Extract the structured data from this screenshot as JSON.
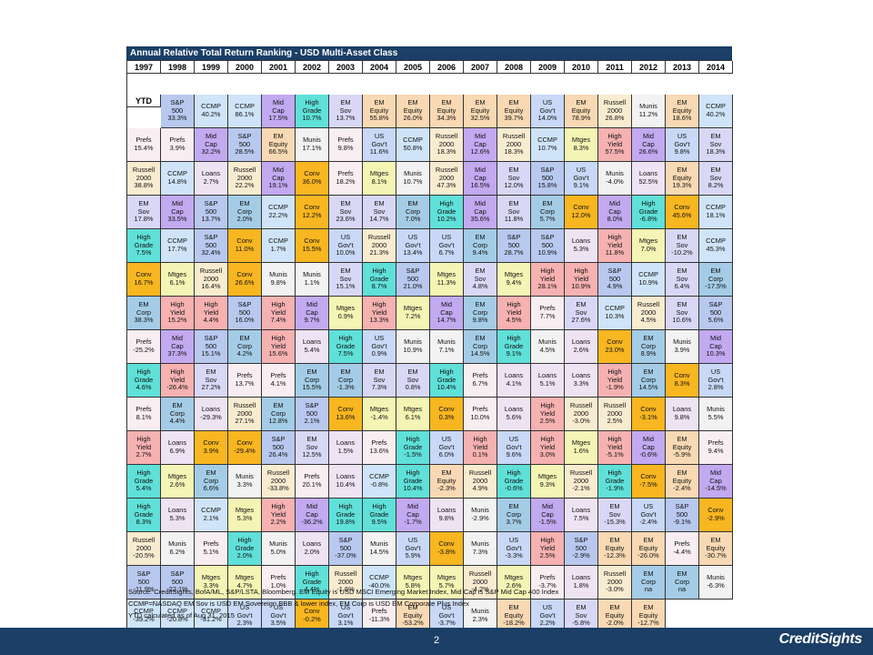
{
  "title": "Annual Relative Total Return Ranking - USD Multi-Asset Class",
  "footnotes": [
    "Source: CreditSights, BofA/ML, S&P/LSTA, Bloomberg. EM Equity is USD MSCI Emerging Market Index, Mid Cap is S&P Mid Cap 400 Index",
    "CCMP=NASDAQ  EM Sov is USD EM Sovereign BBB & lower index, EM Corp is USD EM Corporate Plus Index",
    "YTD calculated as of Aug 31, 2015"
  ],
  "page_number": "2",
  "logo": "CreditSights",
  "assets": {
    "sp": {
      "label": "S&P\n500",
      "color": "#b8c8ee"
    },
    "ccmp": {
      "label": "CCMP",
      "color": "#cfe4f8"
    },
    "mid": {
      "label": "Mid\nCap",
      "color": "#c2a9f0"
    },
    "hy": {
      "label": "High\nYield",
      "color": "#f6b1b1"
    },
    "hg": {
      "label": "High\nGrade",
      "color": "#5fe0d8"
    },
    "sov": {
      "label": "EM\nSov",
      "color": "#d8d8f6"
    },
    "eq": {
      "label": "EM\nEquity",
      "color": "#f8d9b4"
    },
    "russ": {
      "label": "Russell\n2000",
      "color": "#f8ecd0"
    },
    "ust": {
      "label": "US\nGov't",
      "color": "#c8d8f6"
    },
    "corp": {
      "label": "EM\nCorp",
      "color": "#a4cce6"
    },
    "mun": {
      "label": "Munis",
      "color": "#f2f2f2"
    },
    "conv": {
      "label": "Conv",
      "color": "#f8b620"
    },
    "mtg": {
      "label": "Mtges",
      "color": "#f4f4b4"
    },
    "loan": {
      "label": "Loans",
      "color": "#ede3f3"
    },
    "pref": {
      "label": "Prefs",
      "color": "#f8eef2"
    }
  },
  "chart_data": {
    "type": "table",
    "title": "Annual Relative Total Return Ranking - USD Multi-Asset Class",
    "columns": [
      "1997",
      "1998",
      "1999",
      "2000",
      "2001",
      "2002",
      "2003",
      "2004",
      "2005",
      "2006",
      "2007",
      "2008",
      "2009",
      "2010",
      "2011",
      "2012",
      "2013",
      "2014",
      "YTD"
    ],
    "rows": [
      [
        [
          "sp",
          "33.3%"
        ],
        [
          "ccmp",
          "40.2%"
        ],
        [
          "ccmp",
          "86.1%"
        ],
        [
          "mid",
          "17.5%"
        ],
        [
          "hg",
          "10.7%"
        ],
        [
          "sov",
          "13.7%"
        ],
        [
          "eq",
          "55.8%"
        ],
        [
          "eq",
          "26.0%"
        ],
        [
          "eq",
          "34.3%"
        ],
        [
          "eq",
          "32.5%"
        ],
        [
          "eq",
          "39.7%"
        ],
        [
          "ust",
          "14.0%"
        ],
        [
          "eq",
          "78.9%"
        ],
        [
          "russ",
          "26.8%"
        ],
        [
          "mun",
          "11.2%"
        ],
        [
          "eq",
          "18.6%"
        ],
        [
          "ccmp",
          "40.2%"
        ],
        [
          "pref",
          "15.4%"
        ],
        [
          "pref",
          "3.9%"
        ]
      ],
      [
        [
          "mid",
          "32.2%"
        ],
        [
          "sp",
          "28.5%"
        ],
        [
          "eq",
          "66.5%"
        ],
        [
          "mun",
          "17.1%"
        ],
        [
          "pref",
          "9.8%"
        ],
        [
          "ust",
          "11.6%"
        ],
        [
          "ccmp",
          "50.8%"
        ],
        [
          "russ",
          "18.3%"
        ],
        [
          "mid",
          "12.6%"
        ],
        [
          "russ",
          "18.3%"
        ],
        [
          "ccmp",
          "10.7%"
        ],
        [
          "mtg",
          "8.3%"
        ],
        [
          "hy",
          "57.5%"
        ],
        [
          "mid",
          "26.6%"
        ],
        [
          "ust",
          "9.8%"
        ],
        [
          "sov",
          "18.3%"
        ],
        [
          "russ",
          "38.8%"
        ],
        [
          "ccmp",
          "14.8%"
        ],
        [
          "loan",
          "2.7%"
        ]
      ],
      [
        [
          "russ",
          "22.2%"
        ],
        [
          "mid",
          "19.1%"
        ],
        [
          "conv",
          "36.0%"
        ],
        [
          "pref",
          "18.2%"
        ],
        [
          "mtg",
          "8.1%"
        ],
        [
          "mun",
          "10.7%"
        ],
        [
          "russ",
          "47.3%"
        ],
        [
          "mid",
          "16.5%"
        ],
        [
          "sov",
          "12.0%"
        ],
        [
          "sp",
          "15.8%"
        ],
        [
          "ust",
          "9.1%"
        ],
        [
          "mun",
          "-4.0%"
        ],
        [
          "loan",
          "52.5%"
        ],
        [
          "eq",
          "19.3%"
        ],
        [
          "sov",
          "8.2%"
        ],
        [
          "sov",
          "17.8%"
        ],
        [
          "mid",
          "33.5%"
        ],
        [
          "sp",
          "13.7%"
        ],
        [
          "corp",
          "2.0%"
        ]
      ],
      [
        [
          "ccmp",
          "22.2%"
        ],
        [
          "conv",
          "12.2%"
        ],
        [
          "sov",
          "23.6%"
        ],
        [
          "sov",
          "14.7%"
        ],
        [
          "corp",
          "7.0%"
        ],
        [
          "hg",
          "10.2%"
        ],
        [
          "mid",
          "35.6%"
        ],
        [
          "sov",
          "11.8%"
        ],
        [
          "corp",
          "5.7%"
        ],
        [
          "conv",
          "12.0%"
        ],
        [
          "mid",
          "8.0%"
        ],
        [
          "hg",
          "-6.8%"
        ],
        [
          "conv",
          "45.6%"
        ],
        [
          "ccmp",
          "18.1%"
        ],
        [
          "hg",
          "7.5%"
        ],
        [
          "ccmp",
          "17.7%"
        ],
        [
          "sp",
          "32.4%"
        ],
        [
          "conv",
          "11.0%"
        ],
        [
          "ccmp",
          "1.7%"
        ]
      ],
      [
        [
          "conv",
          "15.5%"
        ],
        [
          "ust",
          "10.0%"
        ],
        [
          "russ",
          "21.3%"
        ],
        [
          "ust",
          "13.4%"
        ],
        [
          "ust",
          "6.7%"
        ],
        [
          "corp",
          "9.4%"
        ],
        [
          "sp",
          "28.7%"
        ],
        [
          "sp",
          "10.9%"
        ],
        [
          "loan",
          "5.3%"
        ],
        [
          "hy",
          "11.8%"
        ],
        [
          "mtg",
          "7.0%"
        ],
        [
          "sov",
          "-10.2%"
        ],
        [
          "ccmp",
          "45.3%"
        ],
        [
          "conv",
          "16.7%"
        ],
        [
          "mtg",
          "6.1%"
        ],
        [
          "russ",
          "16.4%"
        ],
        [
          "conv",
          "26.6%"
        ],
        [
          "mun",
          "9.8%"
        ],
        [
          "mun",
          "1.1%"
        ]
      ],
      [
        [
          "sov",
          "15.1%"
        ],
        [
          "hg",
          "8.7%"
        ],
        [
          "sp",
          "21.0%"
        ],
        [
          "mtg",
          "11.3%"
        ],
        [
          "sov",
          "4.8%"
        ],
        [
          "mtg",
          "9.4%"
        ],
        [
          "hy",
          "28.1%"
        ],
        [
          "hy",
          "10.9%"
        ],
        [
          "sp",
          "4.9%"
        ],
        [
          "ccmp",
          "10.9%"
        ],
        [
          "sov",
          "6.4%"
        ],
        [
          "corp",
          "-17.5%"
        ],
        [
          "corp",
          "38.3%"
        ],
        [
          "hy",
          "15.2%"
        ],
        [
          "hy",
          "4.4%"
        ],
        [
          "sp",
          "16.0%"
        ],
        [
          "hy",
          "7.4%"
        ],
        [
          "mid",
          "9.7%"
        ],
        [
          "mtg",
          "0.9%"
        ]
      ],
      [
        [
          "hy",
          "13.3%"
        ],
        [
          "mtg",
          "7.2%"
        ],
        [
          "mid",
          "14.7%"
        ],
        [
          "corp",
          "9.8%"
        ],
        [
          "hy",
          "4.5%"
        ],
        [
          "pref",
          "7.7%"
        ],
        [
          "sov",
          "27.6%"
        ],
        [
          "ccmp",
          "10.3%"
        ],
        [
          "russ",
          "4.5%"
        ],
        [
          "sov",
          "10.6%"
        ],
        [
          "sp",
          "5.6%"
        ],
        [
          "pref",
          "-25.2%"
        ],
        [
          "mid",
          "37.3%"
        ],
        [
          "sp",
          "15.1%"
        ],
        [
          "corp",
          "4.2%"
        ],
        [
          "hy",
          "15.6%"
        ],
        [
          "loan",
          "5.4%"
        ],
        [
          "hg",
          "7.5%"
        ],
        [
          "ust",
          "0.9%"
        ]
      ],
      [
        [
          "mun",
          "10.9%"
        ],
        [
          "mun",
          "7.1%"
        ],
        [
          "corp",
          "14.5%"
        ],
        [
          "hg",
          "9.1%"
        ],
        [
          "mun",
          "4.5%"
        ],
        [
          "loan",
          "2.6%"
        ],
        [
          "conv",
          "23.0%"
        ],
        [
          "corp",
          "8.9%"
        ],
        [
          "mun",
          "3.9%"
        ],
        [
          "mid",
          "10.3%"
        ],
        [
          "hg",
          "4.6%"
        ],
        [
          "hy",
          "-26.4%"
        ],
        [
          "sov",
          "27.2%"
        ],
        [
          "pref",
          "13.7%"
        ],
        [
          "pref",
          "4.1%"
        ],
        [
          "corp",
          "15.5%"
        ],
        [
          "corp",
          "-1.3%"
        ],
        [
          "sov",
          "7.3%"
        ],
        [
          "sov",
          "0.8%"
        ]
      ],
      [
        [
          "hg",
          "10.4%"
        ],
        [
          "pref",
          "6.7%"
        ],
        [
          "loan",
          "4.1%"
        ],
        [
          "loan",
          "5.1%"
        ],
        [
          "loan",
          "3.3%"
        ],
        [
          "hy",
          "-1.9%"
        ],
        [
          "corp",
          "14.5%"
        ],
        [
          "conv",
          "8.3%"
        ],
        [
          "ust",
          "2.8%"
        ],
        [
          "pref",
          "8.1%"
        ],
        [
          "corp",
          "4.4%"
        ],
        [
          "loan",
          "-29.3%"
        ],
        [
          "russ",
          "27.1%"
        ],
        [
          "corp",
          "12.8%"
        ],
        [
          "sp",
          "2.1%"
        ],
        [
          "conv",
          "13.6%"
        ],
        [
          "mtg",
          "-1.4%"
        ],
        [
          "mtg",
          "6.1%"
        ],
        [
          "conv",
          "0.3%"
        ]
      ],
      [
        [
          "pref",
          "10.0%"
        ],
        [
          "loan",
          "5.6%"
        ],
        [
          "hy",
          "2.5%"
        ],
        [
          "russ",
          "-3.0%"
        ],
        [
          "russ",
          "2.5%"
        ],
        [
          "conv",
          "-3.1%"
        ],
        [
          "loan",
          "9.8%"
        ],
        [
          "mun",
          "5.5%"
        ],
        [
          "hy",
          "2.7%"
        ],
        [
          "loan",
          "6.9%"
        ],
        [
          "conv",
          "3.9%"
        ],
        [
          "conv",
          "-29.4%"
        ],
        [
          "sp",
          "26.4%"
        ],
        [
          "sov",
          "12.5%"
        ],
        [
          "loan",
          "1.5%"
        ],
        [
          "pref",
          "13.6%"
        ],
        [
          "hg",
          "-1.5%"
        ],
        [
          "ust",
          "6.0%"
        ],
        [
          "hy",
          "0.1%"
        ]
      ],
      [
        [
          "ust",
          "9.6%"
        ],
        [
          "hy",
          "3.0%"
        ],
        [
          "mtg",
          "1.6%"
        ],
        [
          "hy",
          "-5.1%"
        ],
        [
          "mid",
          "-0.6%"
        ],
        [
          "eq",
          "-5.9%"
        ],
        [
          "pref",
          "9.4%"
        ],
        [
          "hg",
          "5.4%"
        ],
        [
          "mtg",
          "2.6%"
        ],
        [
          "corp",
          "6.6%"
        ],
        [
          "mun",
          "3.3%"
        ],
        [
          "russ",
          "-33.8%"
        ],
        [
          "pref",
          "20.1%"
        ],
        [
          "loan",
          "10.4%"
        ],
        [
          "ccmp",
          "-0.8%"
        ],
        [
          "hg",
          "10.4%"
        ],
        [
          "eq",
          "-2.3%"
        ],
        [
          "russ",
          "4.9%"
        ],
        [
          "hg",
          "-0.6%"
        ]
      ],
      [
        [
          "mtg",
          "9.3%"
        ],
        [
          "russ",
          "-2.1%"
        ],
        [
          "hg",
          "-1.9%"
        ],
        [
          "conv",
          "-7.5%"
        ],
        [
          "eq",
          "-2.4%"
        ],
        [
          "mid",
          "-14.5%"
        ],
        [
          "hg",
          "8.3%"
        ],
        [
          "loan",
          "5.3%"
        ],
        [
          "ccmp",
          "2.1%"
        ],
        [
          "mtg",
          "5.3%"
        ],
        [
          "hy",
          "2.2%"
        ],
        [
          "mid",
          "-36.2%"
        ],
        [
          "hg",
          "19.8%"
        ],
        [
          "hg",
          "9.5%"
        ],
        [
          "mid",
          "-1.7%"
        ],
        [
          "loan",
          "9.8%"
        ],
        [
          "mun",
          "-2.9%"
        ],
        [
          "corp",
          "3.7%"
        ],
        [
          "mid",
          "-1.5%"
        ]
      ],
      [
        [
          "loan",
          "7.5%"
        ],
        [
          "sov",
          "-15.3%"
        ],
        [
          "ust",
          "-2.4%"
        ],
        [
          "sp",
          "-9.1%"
        ],
        [
          "conv",
          "-2.9%"
        ],
        [
          "russ",
          "-20.5%"
        ],
        [
          "mun",
          "6.2%"
        ],
        [
          "pref",
          "5.1%"
        ],
        [
          "hg",
          "2.0%"
        ],
        [
          "mun",
          "5.0%"
        ],
        [
          "loan",
          "2.0%"
        ],
        [
          "sp",
          "-37.0%"
        ],
        [
          "mun",
          "14.5%"
        ],
        [
          "ust",
          "5.9%"
        ],
        [
          "conv",
          "-3.8%"
        ],
        [
          "mun",
          "7.3%"
        ],
        [
          "ust",
          "-3.3%"
        ],
        [
          "hy",
          "2.5%"
        ],
        [
          "sp",
          "-2.9%"
        ]
      ],
      [
        [
          "eq",
          "-12.3%"
        ],
        [
          "eq",
          "-26.0%"
        ],
        [
          "pref",
          "-4.4%"
        ],
        [
          "eq",
          "-30.7%"
        ],
        [
          "sp",
          "-11.9%"
        ],
        [
          "sp",
          "-22.1%"
        ],
        [
          "mtg",
          "3.3%"
        ],
        [
          "mtg",
          "4.7%"
        ],
        [
          "pref",
          "1.0%"
        ],
        [
          "hg",
          "4.4%"
        ],
        [
          "russ",
          "-1.6%"
        ],
        [
          "ccmp",
          "-40.0%"
        ],
        [
          "mtg",
          "5.8%"
        ],
        [
          "mtg",
          "5.7%"
        ],
        [
          "russ",
          "-4.2%"
        ],
        [
          "mtg",
          "2.6%"
        ],
        [
          "pref",
          "-3.7%"
        ],
        [
          "loan",
          "1.8%"
        ],
        [
          "russ",
          "-3.0%"
        ]
      ],
      [
        [
          "corp",
          "na"
        ],
        [
          "corp",
          "na"
        ],
        [
          "mun",
          "-6.3%"
        ],
        [
          "ccmp",
          "-39.2%"
        ],
        [
          "ccmp",
          "-20.8%"
        ],
        [
          "ccmp",
          "-31.2%"
        ],
        [
          "ust",
          "2.3%"
        ],
        [
          "ust",
          "3.5%"
        ],
        [
          "conv",
          "-0.2%"
        ],
        [
          "ust",
          "3.1%"
        ],
        [
          "pref",
          "-11.3%"
        ],
        [
          "eq",
          "-53.2%"
        ],
        [
          "ust",
          "-3.7%"
        ],
        [
          "mun",
          "2.3%"
        ],
        [
          "eq",
          "-18.2%"
        ],
        [
          "ust",
          "2.2%"
        ],
        [
          "sov",
          "-5.8%"
        ],
        [
          "eq",
          "-2.0%"
        ],
        [
          "eq",
          "-12.7%"
        ]
      ]
    ]
  }
}
